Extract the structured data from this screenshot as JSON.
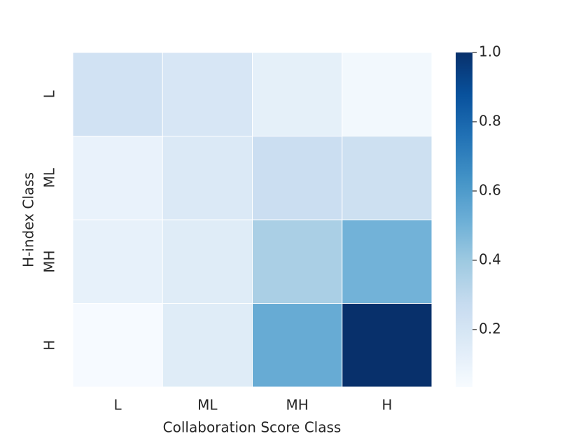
{
  "chart_data": {
    "type": "heatmap",
    "x_label": "Collaboration Score Class",
    "y_label": "H-index Class",
    "x_categories": [
      "L",
      "ML",
      "MH",
      "H"
    ],
    "y_categories": [
      "L",
      "ML",
      "MH",
      "H"
    ],
    "values": [
      [
        0.22,
        0.19,
        0.12,
        0.06
      ],
      [
        0.1,
        0.17,
        0.25,
        0.24
      ],
      [
        0.11,
        0.15,
        0.36,
        0.5
      ],
      [
        0.04,
        0.15,
        0.53,
        1.0
      ]
    ],
    "colormap": "Blues",
    "clim": [
      0.034,
      1.0
    ],
    "cticks": [
      {
        "value": 1,
        "label": "1.0"
      },
      0.8,
      0.6,
      0.4,
      0.2
    ]
  }
}
